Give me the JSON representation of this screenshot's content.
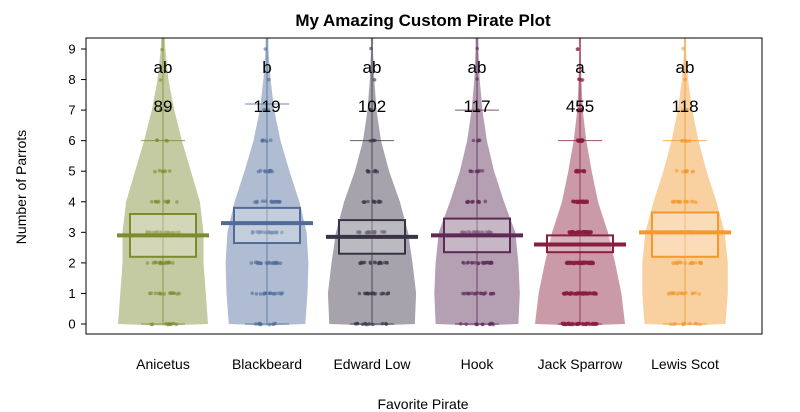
{
  "chart_data": {
    "type": "pirateplot",
    "title": "My Amazing Custom Pirate Plot",
    "xlabel": "Favorite Pirate",
    "ylabel": "Number of Parrots",
    "ylim": [
      0,
      9
    ],
    "yticks": [
      0,
      1,
      2,
      3,
      4,
      5,
      6,
      7,
      8,
      9
    ],
    "categories": [
      "Anicetus",
      "Blackbeard",
      "Edward Low",
      "Hook",
      "Jack Sparrow",
      "Lewis Scot"
    ],
    "colors": [
      "#7d8a2e",
      "#4e6b9a",
      "#3a3346",
      "#5c2a55",
      "#8a1e3f",
      "#f29a2e"
    ],
    "means": [
      2.9,
      3.3,
      2.85,
      2.9,
      2.6,
      3.0
    ],
    "q1": [
      2.2,
      2.65,
      2.3,
      2.35,
      2.35,
      2.2
    ],
    "q3": [
      3.6,
      3.8,
      3.4,
      3.45,
      2.9,
      3.65
    ],
    "min_whisker": [
      0,
      0,
      0,
      0,
      0,
      0
    ],
    "max_whisker": [
      6,
      7.2,
      6,
      7,
      6,
      6
    ],
    "group_letters": [
      "ab",
      "b",
      "ab",
      "ab",
      "a",
      "ab"
    ],
    "counts": [
      "89",
      "119",
      "102",
      "117",
      "455",
      "118"
    ],
    "violin_widths": [
      [
        1.0,
        0.95,
        0.9,
        0.9,
        0.82,
        0.62,
        0.42,
        0.25,
        0.12,
        0.05
      ],
      [
        0.85,
        0.9,
        0.92,
        0.88,
        0.72,
        0.5,
        0.3,
        0.16,
        0.08,
        0.03
      ],
      [
        0.95,
        0.98,
        0.9,
        0.8,
        0.62,
        0.38,
        0.2,
        0.1,
        0.05,
        0.02
      ],
      [
        0.92,
        0.95,
        0.92,
        0.85,
        0.6,
        0.38,
        0.22,
        0.12,
        0.06,
        0.03
      ],
      [
        1.0,
        0.92,
        0.78,
        0.62,
        0.4,
        0.26,
        0.14,
        0.06,
        0.03,
        0.02
      ],
      [
        0.9,
        0.95,
        0.95,
        0.88,
        0.7,
        0.48,
        0.3,
        0.16,
        0.07,
        0.02
      ]
    ],
    "point_counts": [
      [
        10,
        14,
        18,
        20,
        12,
        6,
        4,
        2,
        1,
        1
      ],
      [
        10,
        16,
        20,
        22,
        16,
        10,
        6,
        3,
        1,
        1
      ],
      [
        12,
        18,
        20,
        18,
        12,
        8,
        4,
        2,
        1,
        1
      ],
      [
        12,
        18,
        22,
        20,
        12,
        8,
        4,
        2,
        1,
        1
      ],
      [
        60,
        80,
        90,
        80,
        50,
        30,
        20,
        8,
        4,
        2
      ],
      [
        10,
        16,
        20,
        22,
        16,
        10,
        6,
        3,
        1,
        1
      ]
    ]
  }
}
